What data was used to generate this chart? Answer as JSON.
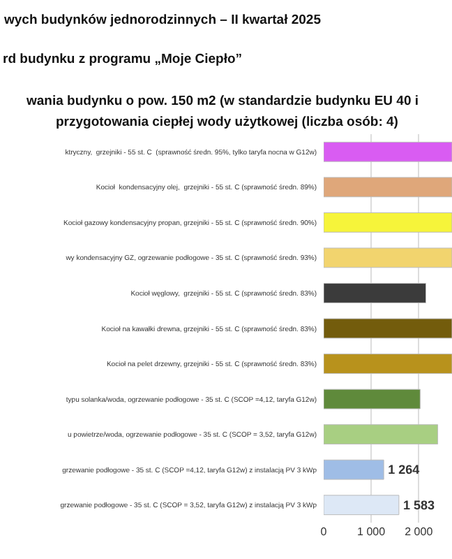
{
  "chart_data": {
    "type": "bar",
    "orientation": "horizontal",
    "title": "wych budynków jednorodzinnych – II kwartał 2025",
    "subtitle": "rd budynku z programu „Moje Ciepło”",
    "annotations": [
      "wania budynku o pow. 150 m2 (w standardzie budynku EU 40 i",
      "przygotowania ciepłej wody użytkowej (liczba osób: 4)"
    ],
    "categories": [
      "ktryczny,  grzejniki - 55 st. C  (sprawność średn. 95%, tylko taryfa nocna w G12w)",
      "Kocioł  kondensacyjny olej,  grzejniki - 55 st. C (sprawność średn. 89%)",
      "Kocioł gazowy kondensacyjny propan, grzejniki - 55 st. C (sprawność średn. 90%)",
      "wy kondensacyjny GZ, ogrzewanie podłogowe - 35 st. C (sprawność średn. 93%)",
      "Kocioł węglowy,  grzejniki - 55 st. C (sprawność średn. 83%)",
      "Kocioł na kawałki drewna, grzejniki - 55 st. C (sprawność średn. 83%)",
      "Kocioł na pelet drzewny, grzejniki - 55 st. C (sprawność średn. 83%)",
      "typu solanka/woda, ogrzewanie podłogowe - 35 st. C (SCOP =4,12, taryfa G12w)",
      "u powietrze/woda, ogrzewanie podłogowe - 35 st. C (SCOP = 3,52, taryfa G12w)",
      "grzewanie podłogowe - 35 st. C (SCOP =4,12, taryfa G12w) z instalacją PV 3 kWp",
      "grzewanie podłogowe - 35 st. C (SCOP = 3,52, taryfa G12w) z instalacją PV 3 kWp"
    ],
    "values": [
      2700,
      2700,
      2700,
      2700,
      2150,
      2700,
      2700,
      2030,
      2400,
      1264,
      1583
    ],
    "colors": [
      "#d95cf2",
      "#dfa77a",
      "#f6f43a",
      "#f2d46e",
      "#3b3b3b",
      "#735c0c",
      "#b8921c",
      "#5f8a3b",
      "#a8cf82",
      "#9fbde6",
      "#dde8f6"
    ],
    "value_labels": [
      null,
      null,
      null,
      null,
      null,
      null,
      null,
      null,
      null,
      "1 264",
      "1 583"
    ],
    "xlim": [
      0,
      2700
    ],
    "xticks": [
      0,
      {
        "value": 1000,
        "label": "1 000"
      },
      {
        "value": 2000,
        "label": "2 000"
      }
    ],
    "grid": "x"
  }
}
